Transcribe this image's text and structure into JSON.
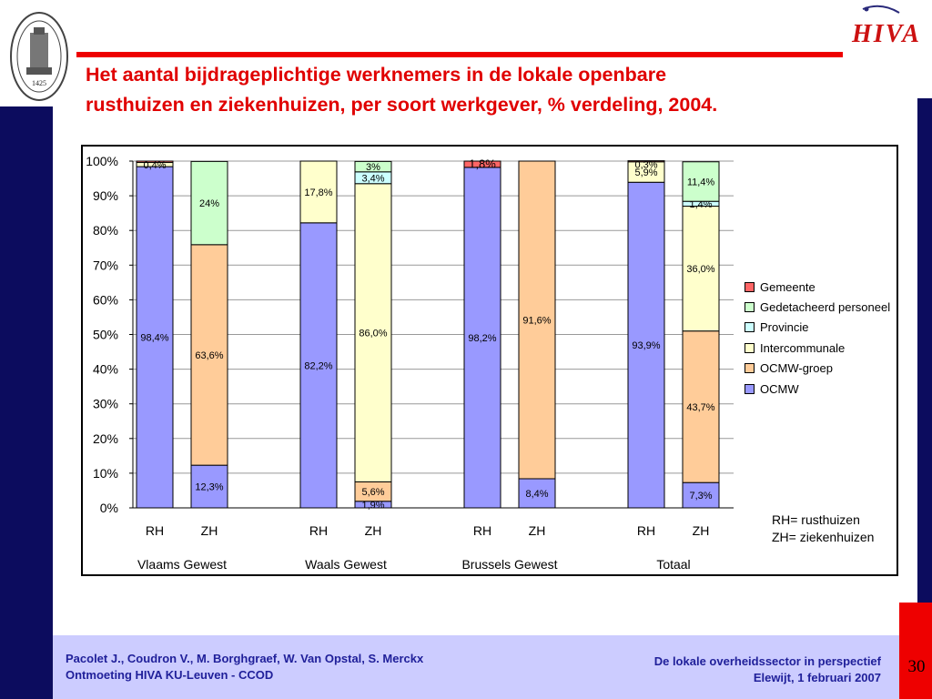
{
  "title": {
    "line1": "Het aantal bijdrageplichtige werknemers in de lokale openbare",
    "line2": "rusthuizen en ziekenhuizen, per soort werkgever, % verdeling, 2004."
  },
  "logo": {
    "seal_year": "1425",
    "hiva_text": "HIVA"
  },
  "colors": {
    "accent_red": "#ee0000",
    "navy": "#0c0c5e",
    "footer_bg": "#ccccff",
    "footer_text": "#20209a"
  },
  "chart_data": {
    "type": "bar",
    "stacked": true,
    "ylim": [
      0,
      100
    ],
    "yticks": [
      "0%",
      "10%",
      "20%",
      "30%",
      "40%",
      "50%",
      "60%",
      "70%",
      "80%",
      "90%",
      "100%"
    ],
    "grid": true,
    "legend_position": "right",
    "groups": [
      "Vlaams Gewest",
      "Waals Gewest",
      "Brussels Gewest",
      "Totaal"
    ],
    "categories": [
      "RH",
      "ZH",
      "RH",
      "ZH",
      "RH",
      "ZH",
      "RH",
      "ZH"
    ],
    "series": [
      {
        "name": "OCMW",
        "color": "#9999ff",
        "values": [
          98.4,
          12.3,
          82.2,
          1.9,
          98.2,
          8.4,
          93.9,
          7.3
        ],
        "labels": [
          "98,4%",
          "12,3%",
          "82,2%",
          "1,9%",
          "98,2%",
          "8,4%",
          "93,9%",
          "7,3%"
        ]
      },
      {
        "name": "OCMW-groep",
        "color": "#ffcc99",
        "values": [
          0,
          63.6,
          0,
          5.6,
          0,
          91.6,
          0,
          43.7
        ],
        "labels": [
          "",
          "63,6%",
          "",
          "5,6%",
          "",
          "91,6%",
          "",
          "43,7%"
        ]
      },
      {
        "name": "Intercommunale",
        "color": "#ffffcc",
        "values": [
          1.2,
          0,
          17.8,
          86.0,
          0,
          0,
          5.9,
          36.0
        ],
        "labels": [
          "",
          "",
          "17,8%",
          "86,0%",
          "",
          "",
          "5,9%",
          "36,0%"
        ]
      },
      {
        "name": "Provincie",
        "color": "#ccffff",
        "values": [
          0,
          0,
          0,
          3.4,
          0,
          0,
          0,
          1.4
        ],
        "labels": [
          "",
          "",
          "",
          "3,4%",
          "",
          "",
          "",
          "1,4%"
        ]
      },
      {
        "name": "Gedetacheerd personeel",
        "color": "#ccffcc",
        "values": [
          0,
          24.0,
          0,
          3.0,
          0,
          0,
          0,
          11.4
        ],
        "labels": [
          "",
          "24%",
          "",
          "3%",
          "",
          "",
          "",
          "11,4%"
        ]
      },
      {
        "name": "Gemeente",
        "color": "#ff6666",
        "values": [
          0.4,
          0,
          0,
          0,
          1.8,
          0,
          0.3,
          0
        ],
        "labels": [
          "0,4%",
          "",
          "",
          "",
          "1,8%",
          "",
          "0,3%",
          ""
        ]
      }
    ],
    "legend_order": [
      "Gemeente",
      "Gedetacheerd personeel",
      "Provincie",
      "Intercommunale",
      "OCMW-groep",
      "OCMW"
    ]
  },
  "notes": {
    "rh": "RH= rusthuizen",
    "zh": "ZH= ziekenhuizen"
  },
  "footer": {
    "authors": "Pacolet J., Coudron V., M. Borghgraef, W. Van Opstal, S. Merckx",
    "event": "Ontmoeting HIVA KU-Leuven - CCOD",
    "presentation": "De lokale overheidssector in perspectief",
    "place_date": "Elewijt, 1 februari 2007",
    "page": "30"
  }
}
